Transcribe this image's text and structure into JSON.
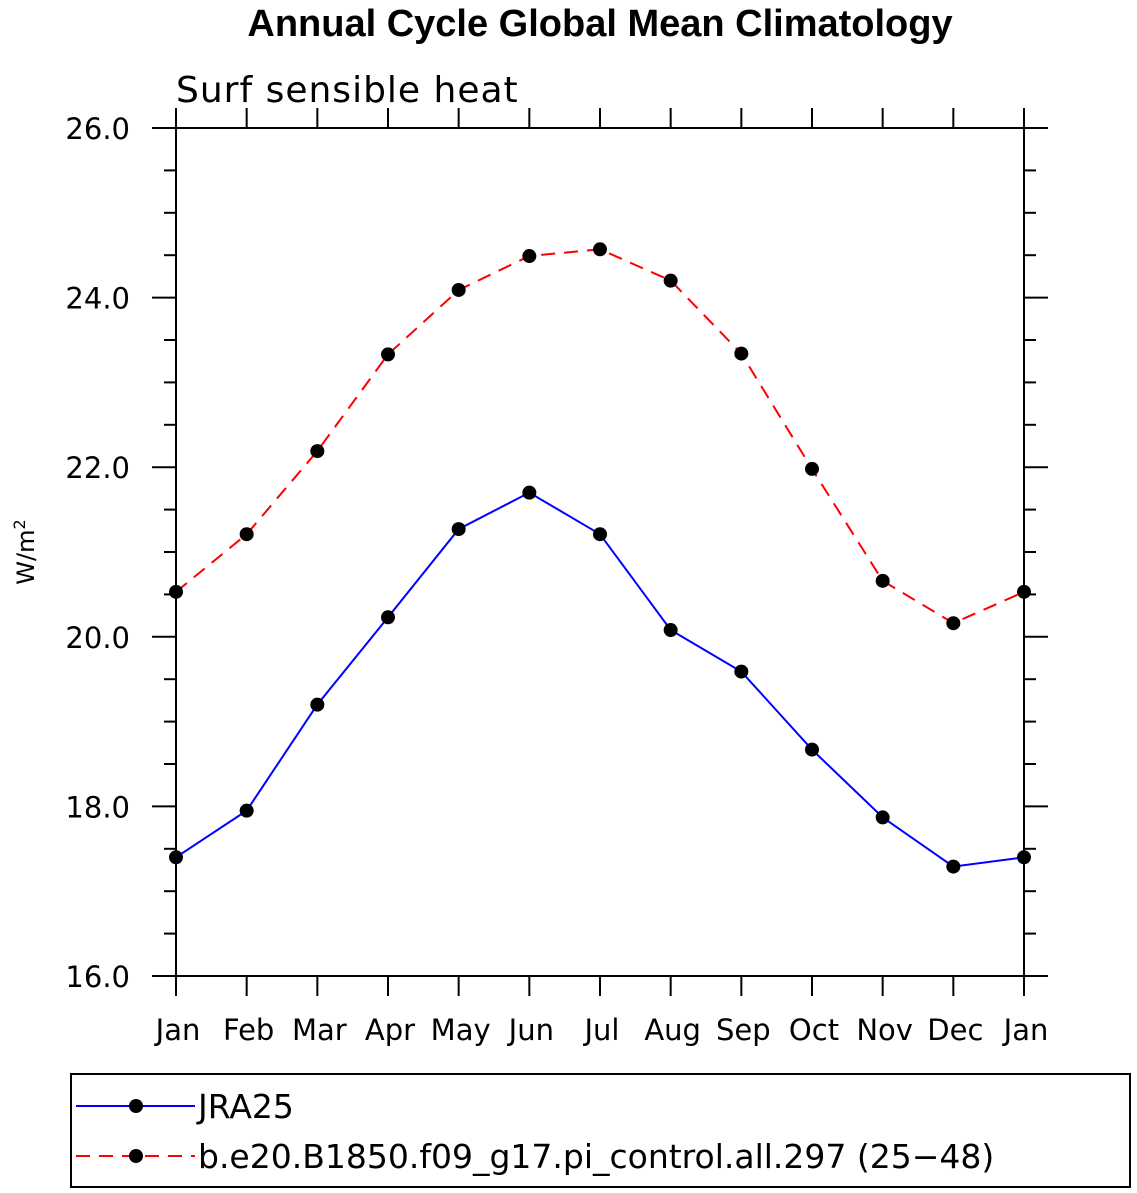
{
  "chart_data": {
    "type": "line",
    "title": "Annual Cycle Global Mean Climatology",
    "subtitle": "Surf sensible heat",
    "ylabel": "W/m",
    "ylabel_superscript": "2",
    "xlabel": "",
    "categories": [
      "Jan",
      "Feb",
      "Mar",
      "Apr",
      "May",
      "Jun",
      "Jul",
      "Aug",
      "Sep",
      "Oct",
      "Nov",
      "Dec",
      "Jan"
    ],
    "ylim": [
      16.0,
      26.0
    ],
    "yticks": [
      "16.0",
      "18.0",
      "20.0",
      "22.0",
      "24.0",
      "26.0"
    ],
    "grid": false,
    "legend_position": "bottom",
    "series": [
      {
        "name": "JRA25",
        "color": "#0000ff",
        "line_style": "solid",
        "marker": "filled-circle",
        "values": [
          17.4,
          17.95,
          19.2,
          20.23,
          21.27,
          21.7,
          21.21,
          20.08,
          19.59,
          18.67,
          17.87,
          17.29,
          17.4
        ]
      },
      {
        "name": "b.e20.B1850.f09_g17.pi_control.all.297 (25−48)",
        "color": "#ff0000",
        "line_style": "dashed",
        "marker": "filled-circle",
        "values": [
          20.53,
          21.21,
          22.19,
          23.33,
          24.09,
          24.49,
          24.57,
          24.2,
          23.34,
          21.98,
          20.66,
          20.16,
          20.53
        ]
      }
    ]
  }
}
